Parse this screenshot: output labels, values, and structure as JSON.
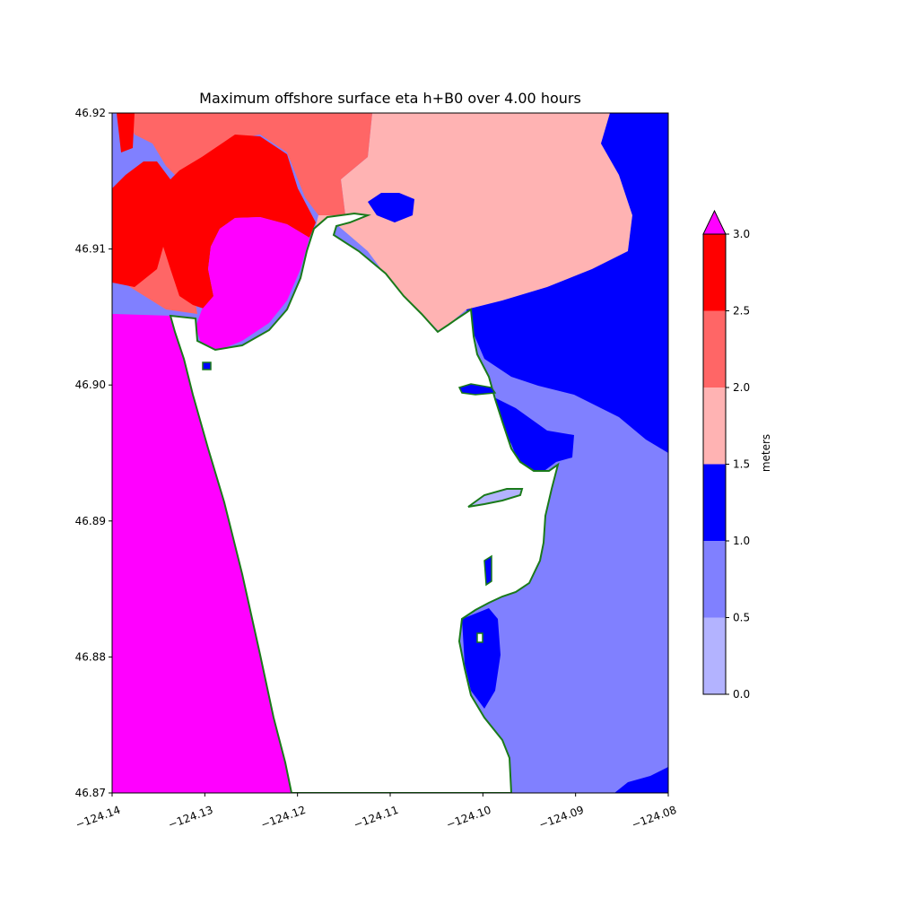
{
  "title": "Maximum offshore surface eta h+B0 over 4.00 hours",
  "colorbar": {
    "label": "meters",
    "ticks": [
      "0.0",
      "0.5",
      "1.0",
      "1.5",
      "2.0",
      "2.5",
      "3.0"
    ],
    "bands": [
      {
        "from": 0.0,
        "to": 0.5,
        "color": "#b3b3ff"
      },
      {
        "from": 0.5,
        "to": 1.0,
        "color": "#8080ff"
      },
      {
        "from": 1.0,
        "to": 1.5,
        "color": "#0000ff"
      },
      {
        "from": 1.5,
        "to": 2.0,
        "color": "#ffb3b3"
      },
      {
        "from": 2.0,
        "to": 2.5,
        "color": "#ff6666"
      },
      {
        "from": 2.5,
        "to": 3.0,
        "color": "#ff0000"
      }
    ],
    "over_color": "#ff00ff"
  },
  "axes": {
    "x_ticks": [
      "−124.14",
      "−124.13",
      "−124.12",
      "−124.11",
      "−124.10",
      "−124.09",
      "−124.08"
    ],
    "y_ticks": [
      "46.87",
      "46.88",
      "46.89",
      "46.90",
      "46.91",
      "46.92"
    ],
    "xlim": [
      -124.14,
      -124.08
    ],
    "ylim": [
      46.87,
      46.92
    ]
  },
  "colors": {
    "coastline": "#1a7a1a",
    "land": "#ffffff"
  }
}
